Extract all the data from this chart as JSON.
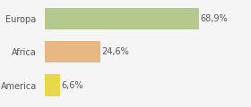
{
  "categories": [
    "America",
    "Africa",
    "Europa"
  ],
  "values": [
    6.6,
    24.6,
    68.9
  ],
  "bar_colors": [
    "#e8d84a",
    "#e8b882",
    "#b5c98e"
  ],
  "labels": [
    "6,6%",
    "24,6%",
    "68,9%"
  ],
  "xlim": [
    0,
    90
  ],
  "background_color": "#f5f5f5",
  "bar_height": 0.65,
  "label_fontsize": 7,
  "tick_fontsize": 7
}
